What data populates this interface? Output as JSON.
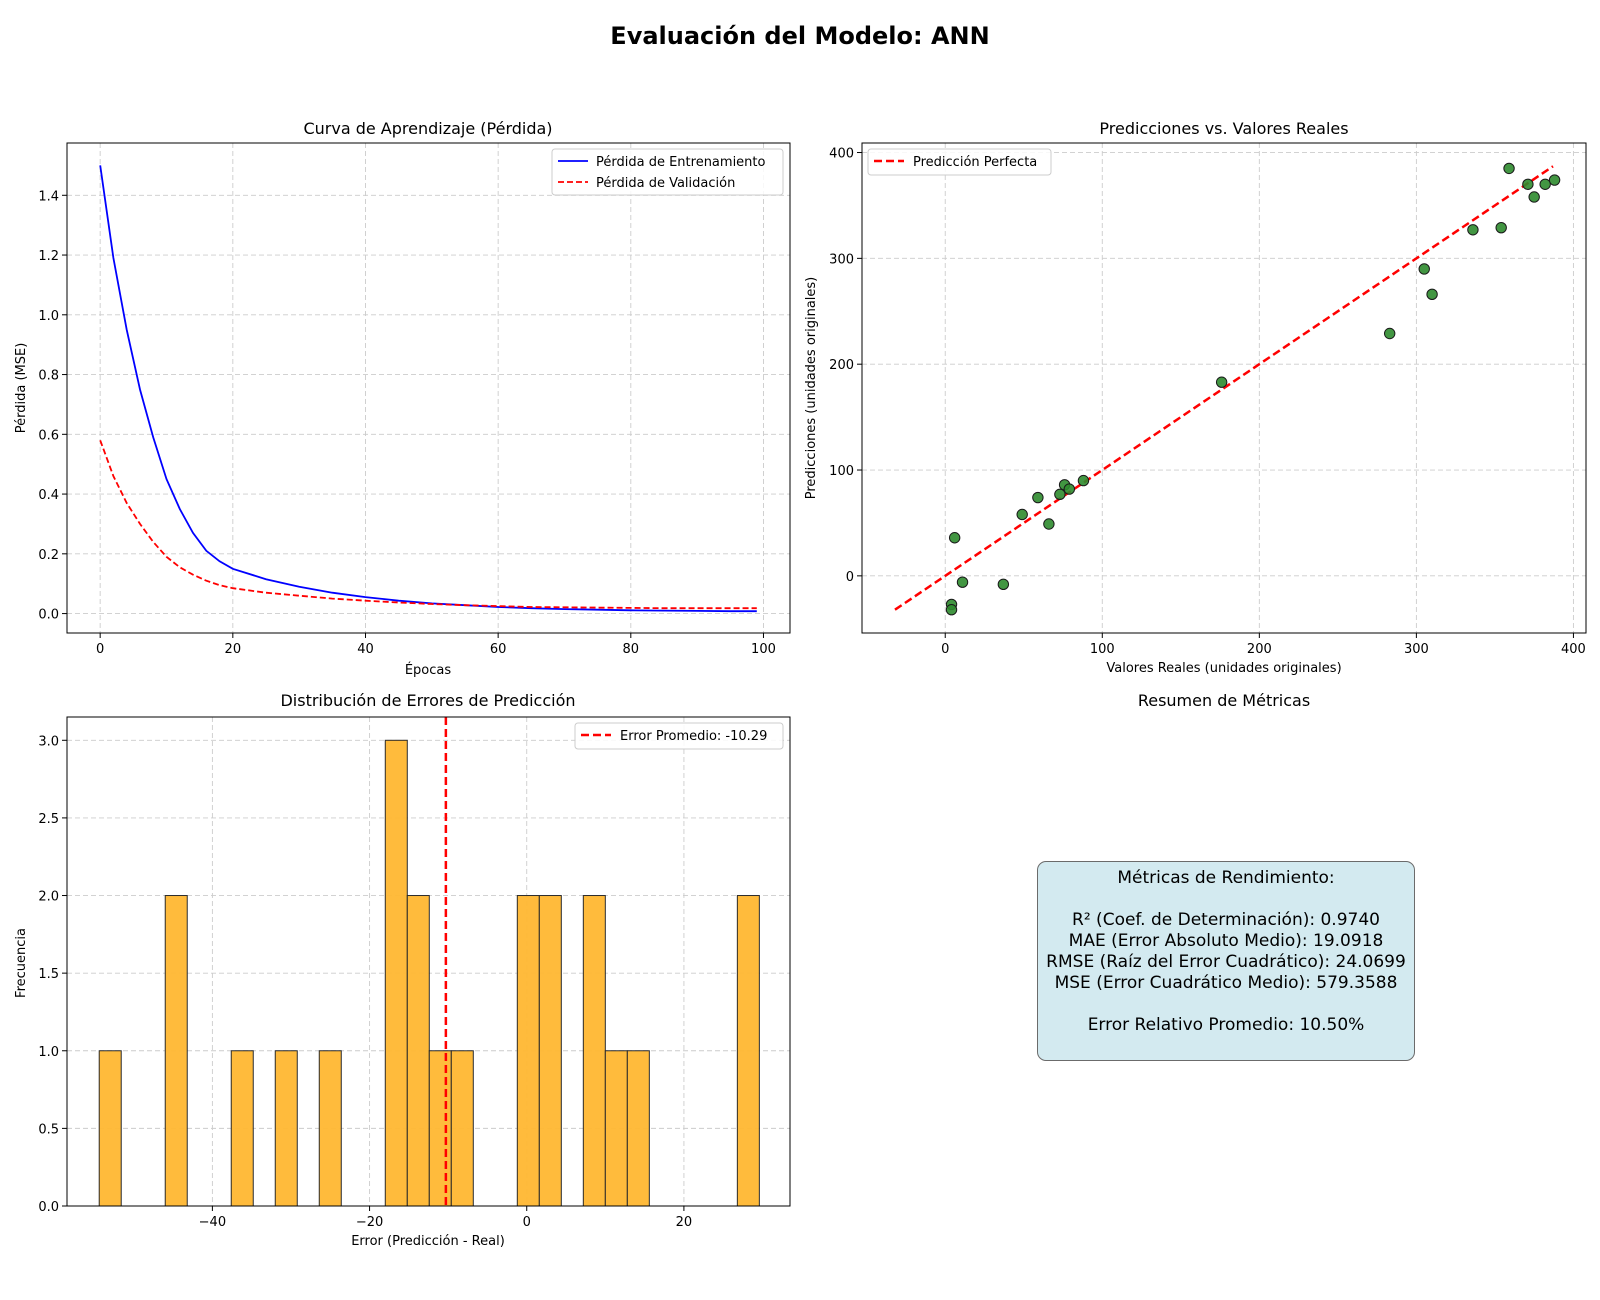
{
  "figure": {
    "suptitle": "Evaluación del Modelo: ANN"
  },
  "colors": {
    "train": "#0000ff",
    "validation": "#ff0000",
    "scatter_fill": "#2e8b2e",
    "hist_fill": "#ffb732",
    "grid": "#cccccc",
    "metrics_box": "#d3eaf0"
  },
  "chart_data": [
    {
      "type": "line",
      "title": "Curva de Aprendizaje (Pérdida)",
      "xlabel": "Épocas",
      "ylabel": "Pérdida (MSE)",
      "xlim": [
        -5,
        104
      ],
      "ylim": [
        -0.065,
        1.575
      ],
      "xticks": [
        0,
        20,
        40,
        60,
        80,
        100
      ],
      "yticks": [
        0.0,
        0.2,
        0.4,
        0.6,
        0.8,
        1.0,
        1.2,
        1.4
      ],
      "grid": true,
      "legend": "upper right",
      "x": [
        0,
        2,
        4,
        6,
        8,
        10,
        12,
        14,
        16,
        18,
        20,
        25,
        30,
        35,
        40,
        45,
        50,
        55,
        60,
        65,
        70,
        75,
        80,
        85,
        90,
        95,
        99
      ],
      "series": [
        {
          "name": "Pérdida de Entrenamiento",
          "style": "solid",
          "color": "#0000ff",
          "values": [
            1.5,
            1.19,
            0.95,
            0.75,
            0.59,
            0.45,
            0.35,
            0.27,
            0.21,
            0.175,
            0.15,
            0.115,
            0.09,
            0.07,
            0.055,
            0.043,
            0.034,
            0.028,
            0.022,
            0.018,
            0.015,
            0.013,
            0.011,
            0.01,
            0.009,
            0.008,
            0.008
          ]
        },
        {
          "name": "Pérdida de Validación",
          "style": "dashed",
          "color": "#ff0000",
          "values": [
            0.58,
            0.46,
            0.37,
            0.3,
            0.24,
            0.19,
            0.155,
            0.13,
            0.11,
            0.095,
            0.085,
            0.07,
            0.06,
            0.05,
            0.043,
            0.037,
            0.032,
            0.028,
            0.025,
            0.022,
            0.021,
            0.02,
            0.019,
            0.018,
            0.018,
            0.018,
            0.018
          ]
        }
      ]
    },
    {
      "type": "scatter",
      "title": "Predicciones vs. Valores Reales",
      "xlabel": "Valores Reales (unidades originales)",
      "ylabel": "Predicciones (unidades originales)",
      "xlim": [
        -53,
        408
      ],
      "ylim": [
        -54,
        409
      ],
      "xticks": [
        0,
        100,
        200,
        300,
        400
      ],
      "yticks": [
        0,
        100,
        200,
        300,
        400
      ],
      "grid": true,
      "legend": "upper left",
      "reference_line": {
        "name": "Predicción Perfecta",
        "from": [
          -32,
          -32
        ],
        "to": [
          387,
          387
        ]
      },
      "points": [
        [
          4,
          -27
        ],
        [
          4,
          -32
        ],
        [
          6,
          36
        ],
        [
          11,
          -6
        ],
        [
          37,
          -8
        ],
        [
          49,
          58
        ],
        [
          59,
          74
        ],
        [
          66,
          49
        ],
        [
          73,
          77
        ],
        [
          76,
          86
        ],
        [
          79,
          82
        ],
        [
          88,
          90
        ],
        [
          176,
          183
        ],
        [
          283,
          229
        ],
        [
          305,
          290
        ],
        [
          310,
          266
        ],
        [
          336,
          327
        ],
        [
          354,
          329
        ],
        [
          359,
          385
        ],
        [
          371,
          370
        ],
        [
          375,
          358
        ],
        [
          382,
          370
        ],
        [
          388,
          374
        ]
      ]
    },
    {
      "type": "bar",
      "subtype": "histogram",
      "title": "Distribución de Errores de Predicción",
      "xlabel": "Error (Predicción - Real)",
      "ylabel": "Frecuencia",
      "xlim": [
        -58.5,
        33.5
      ],
      "ylim": [
        0,
        3.15
      ],
      "xticks": [
        -40,
        -20,
        0,
        20
      ],
      "yticks": [
        0.0,
        0.5,
        1.0,
        1.5,
        2.0,
        2.5,
        3.0
      ],
      "grid": true,
      "legend": "upper right",
      "bin_start": -54.4,
      "bin_width": 2.8,
      "counts": [
        1,
        0,
        0,
        2,
        0,
        0,
        1,
        0,
        1,
        0,
        1,
        0,
        0,
        3,
        2,
        1,
        1,
        0,
        0,
        2,
        2,
        0,
        2,
        1,
        1,
        0,
        0,
        0,
        0,
        2
      ],
      "mean_line": {
        "name": "Error Promedio: -10.29",
        "value": -10.29
      }
    }
  ],
  "metrics_panel": {
    "title": "Resumen de Métricas",
    "box_lines": [
      "Métricas de Rendimiento:",
      "",
      "R² (Coef. de Determinación): 0.9740",
      "MAE (Error Absoluto Medio): 19.0918",
      "RMSE (Raíz del Error Cuadrático): 24.0699",
      "MSE (Error Cuadrático Medio): 579.3588",
      "",
      "Error Relativo Promedio: 10.50%"
    ]
  }
}
